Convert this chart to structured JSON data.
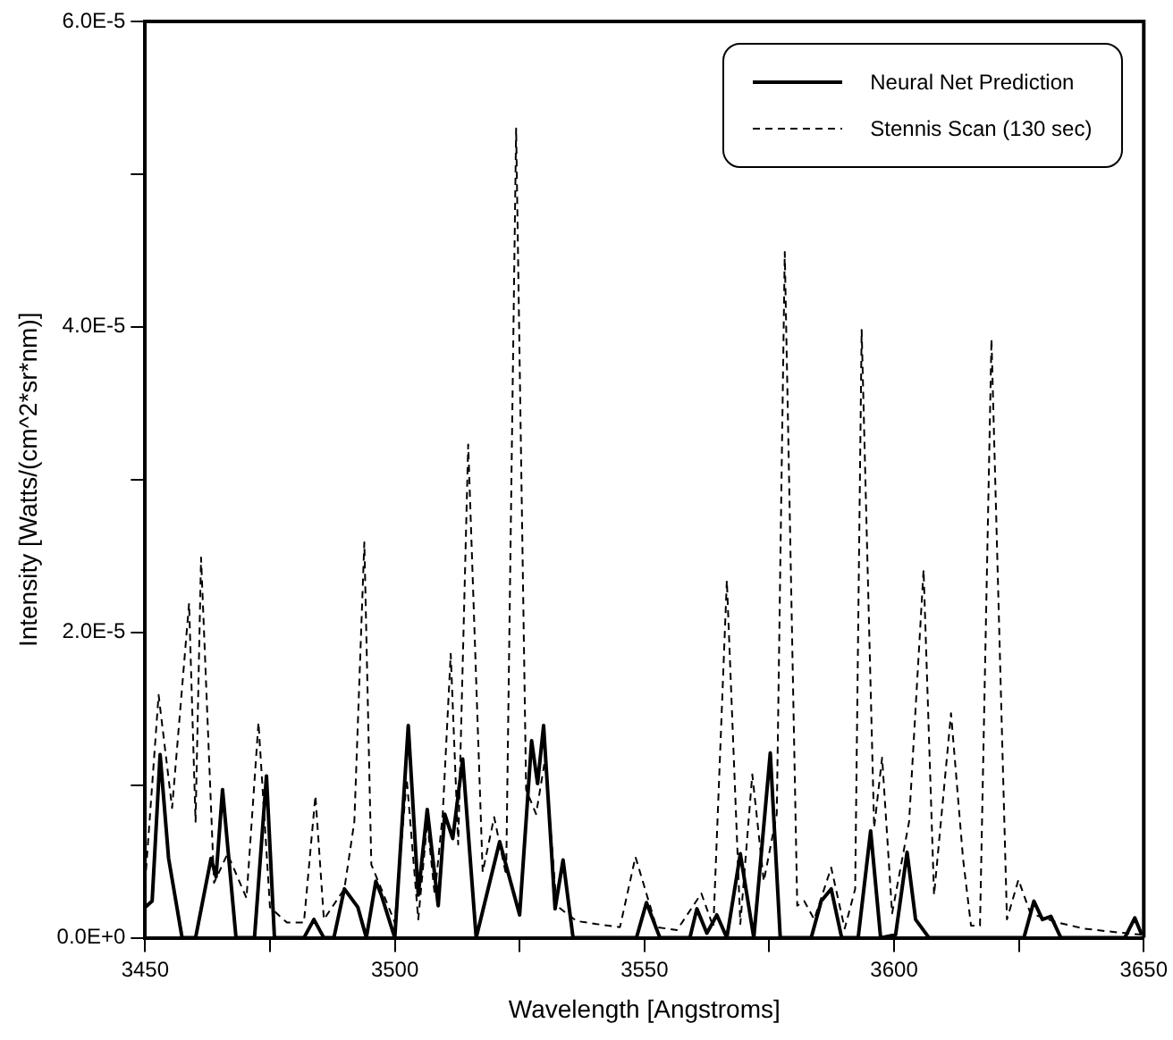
{
  "chart_data": {
    "type": "line",
    "xlabel": "Wavelength [Angstroms]",
    "ylabel": "Intensity [Watts/(cm^2*sr*nm)]",
    "xlim": [
      3450,
      3650
    ],
    "xticks": [
      3450,
      {
        "value": 3475,
        "label": null
      },
      3500,
      {
        "value": 3525,
        "label": null
      },
      3550,
      {
        "value": 3575,
        "label": null
      },
      3600,
      {
        "value": 3625,
        "label": null
      },
      3650
    ],
    "ylim": [
      0,
      6e-05
    ],
    "yticks": [
      {
        "value": 0,
        "label": "0.0E+0"
      },
      {
        "value": 1e-05,
        "label": null
      },
      {
        "value": 2e-05,
        "label": "2.0E-5"
      },
      {
        "value": 3e-05,
        "label": null
      },
      {
        "value": 4e-05,
        "label": "4.0E-5"
      },
      {
        "value": 5e-05,
        "label": null
      },
      {
        "value": 6e-05,
        "label": "6.0E-5"
      }
    ],
    "grid": false,
    "legend": "top right",
    "marker": "none",
    "series": [
      {
        "name": "Neural Net Prediction",
        "color": "#000000",
        "line_style": "solid",
        "x": [
          3450,
          3451.4,
          3453,
          3454.7,
          3457.4,
          3460.1,
          3463.2,
          3464.2,
          3465.5,
          3468.2,
          3471.9,
          3474.3,
          3475.9,
          3481.8,
          3483.8,
          3485.8,
          3487.8,
          3489.9,
          3492.6,
          3494.3,
          3496.2,
          3497.3,
          3500,
          3502.7,
          3504.7,
          3506.5,
          3508.7,
          3510,
          3511.6,
          3513.6,
          3516.3,
          3521,
          3525,
          3527.4,
          3528.6,
          3529.8,
          3532.1,
          3533.7,
          3535.7,
          3548.4,
          3550.4,
          3553.1,
          3559.1,
          3560.5,
          3562.5,
          3564.5,
          3566.5,
          3569.2,
          3571.9,
          3575.2,
          3577.2,
          3583.4,
          3585.4,
          3587.4,
          3589.5,
          3592.8,
          3595.3,
          3597.3,
          3600.3,
          3602.6,
          3604.3,
          3607,
          3626,
          3628,
          3629.7,
          3631.4,
          3633.4,
          3646.2,
          3648.2,
          3649.6
        ],
        "values": [
          2e-06,
          2.4e-06,
          1.2e-05,
          5.2e-06,
          0,
          0,
          5.2e-06,
          4e-06,
          9.7e-06,
          0,
          0,
          1.06e-05,
          0,
          0,
          1.2e-06,
          0,
          0,
          3.2e-06,
          2e-06,
          0,
          3.7e-06,
          2.8e-06,
          0,
          1.39e-05,
          2.8e-06,
          8.4e-06,
          2.1e-06,
          8.1e-06,
          6.5e-06,
          1.17e-05,
          0,
          6.3e-06,
          1.5e-06,
          1.29e-05,
          1.01e-05,
          1.39e-05,
          1.9e-06,
          5.1e-06,
          0,
          0,
          2.3e-06,
          0,
          0,
          1.9e-06,
          3e-07,
          1.5e-06,
          0,
          5.5e-06,
          0,
          1.21e-05,
          0,
          0,
          2.4e-06,
          3.2e-06,
          0,
          0,
          7e-06,
          0,
          2e-07,
          5.6e-06,
          1.2e-06,
          0,
          0,
          2.4e-06,
          1.2e-06,
          1.4e-06,
          0,
          0,
          1.3e-06,
          2e-07
        ]
      },
      {
        "name": "Stennis Scan (130 sec)",
        "color": "#000000",
        "line_style": "dashed",
        "x": [
          3450,
          3452.7,
          3455.4,
          3458.8,
          3460.1,
          3461.2,
          3463.8,
          3466.5,
          3470.3,
          3472.7,
          3475,
          3478.4,
          3481.8,
          3484.1,
          3485.8,
          3489.9,
          3491.9,
          3493.9,
          3495.3,
          3497.3,
          3500,
          3502.4,
          3504.7,
          3506.5,
          3508,
          3509.6,
          3511.2,
          3512.7,
          3514.7,
          3517.6,
          3519.9,
          3522.3,
          3524.3,
          3526.3,
          3528.3,
          3530.1,
          3532.4,
          3536.4,
          3540.4,
          3545.1,
          3548.2,
          3552.4,
          3556.5,
          3561.4,
          3563.8,
          3566.5,
          3569.2,
          3571.6,
          3573.9,
          3576.5,
          3578.1,
          3580.6,
          3582,
          3584,
          3587.4,
          3590.1,
          3592.2,
          3593.5,
          3596,
          3597.6,
          3599.6,
          3603,
          3605.9,
          3608,
          3611.4,
          3613.8,
          3615.4,
          3617.2,
          3619.5,
          3622.6,
          3624.9,
          3627.3,
          3632.7,
          3638.1,
          3643.5,
          3649.6
        ],
        "values": [
          3.6e-06,
          1.59e-05,
          8.5e-06,
          2.19e-05,
          7.6e-06,
          2.49e-05,
          3.6e-06,
          5.5e-06,
          2.6e-06,
          1.41e-05,
          2e-06,
          1e-06,
          1e-06,
          9.3e-06,
          1.2e-06,
          3.2e-06,
          7.6e-06,
          2.59e-05,
          4.8e-06,
          3.2e-06,
          1e-06,
          1.04e-05,
          1.2e-06,
          7.6e-06,
          2.8e-06,
          8.1e-06,
          1.86e-05,
          6.1e-06,
          3.23e-05,
          4.3e-06,
          7.9e-06,
          4.1e-06,
          5.3e-05,
          9.7e-06,
          8.1e-06,
          1.17e-05,
          2.1e-06,
          1.1e-06,
          9e-07,
          7e-07,
          5.3e-06,
          7e-07,
          5e-07,
          2.9e-06,
          7e-07,
          2.34e-05,
          9e-07,
          1.07e-05,
          3.7e-06,
          8.1e-06,
          4.49e-05,
          2.1e-06,
          2.4e-06,
          1.2e-06,
          4.6e-06,
          6e-07,
          3.2e-06,
          3.98e-05,
          7.2e-06,
          1.18e-05,
          1.6e-06,
          7.6e-06,
          2.41e-05,
          2.8e-06,
          1.47e-05,
          5.2e-06,
          8e-07,
          8e-07,
          3.92e-05,
          1.2e-06,
          3.8e-06,
          1.6e-06,
          1e-06,
          6e-07,
          4e-07,
          2e-07
        ]
      }
    ]
  }
}
